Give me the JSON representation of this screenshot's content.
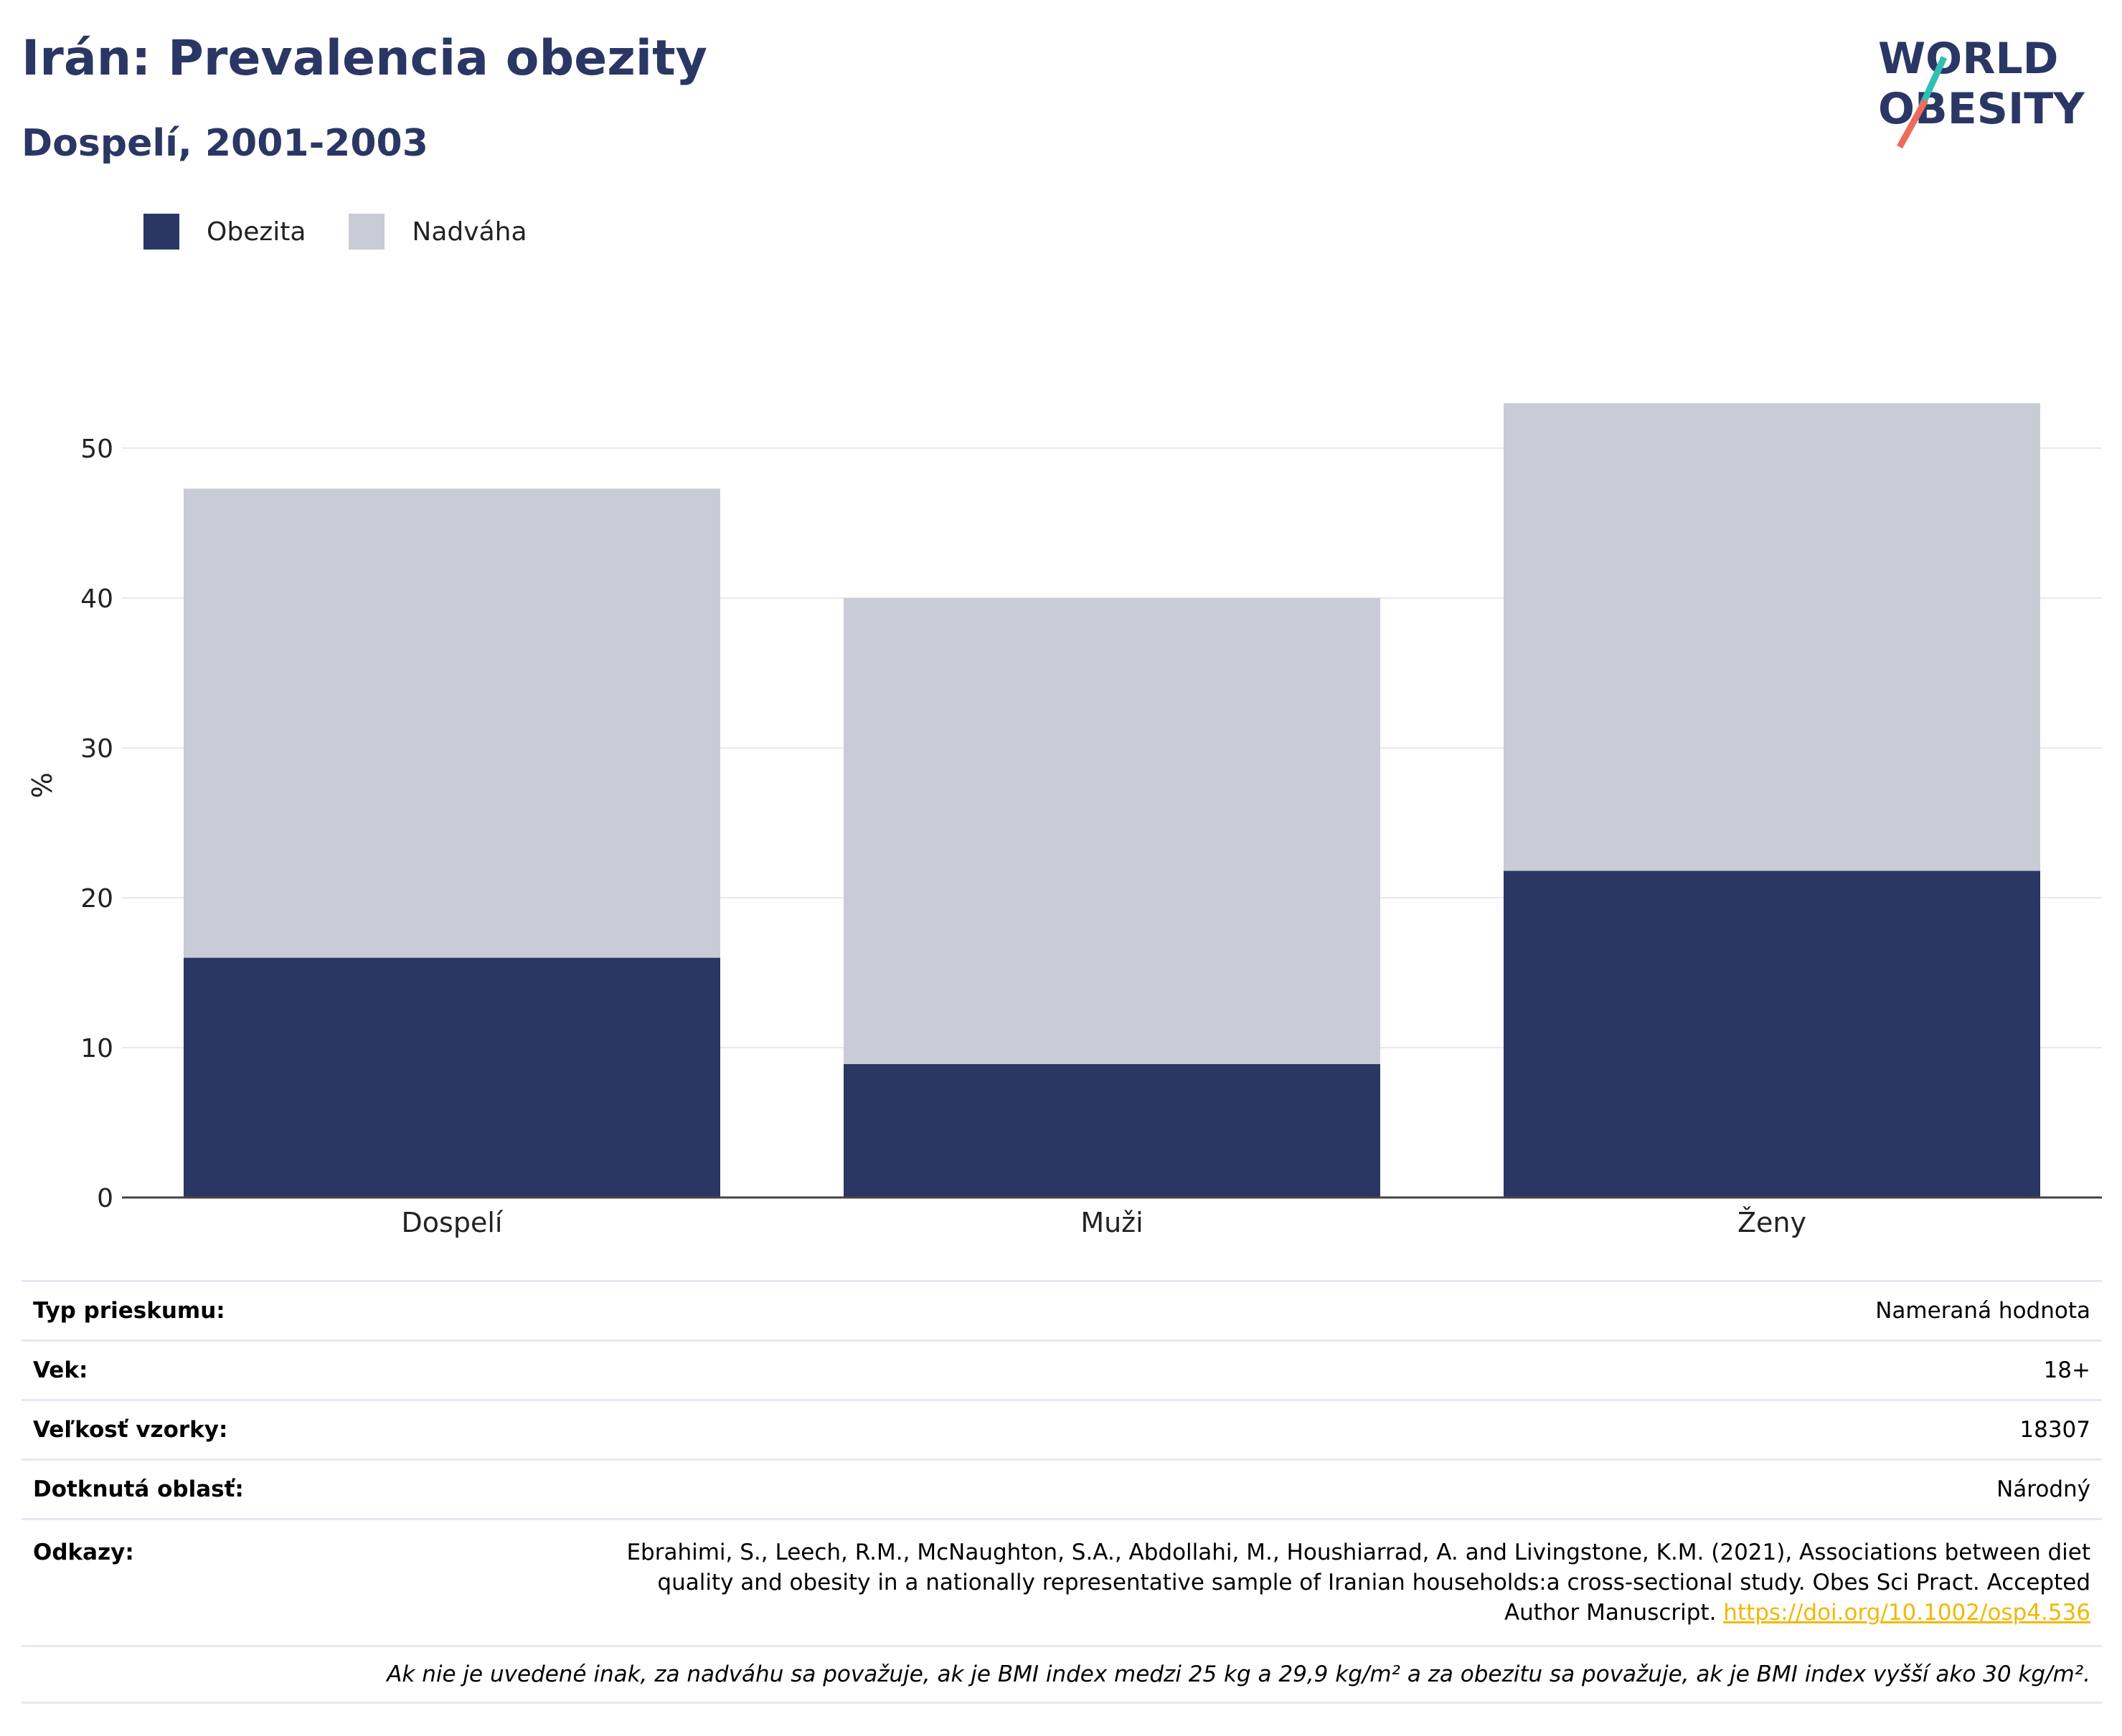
{
  "header": {
    "title": "Irán: Prevalencia obezity",
    "subtitle": "Dospelí, 2001-2003",
    "logo_line1": "WORLD",
    "logo_line2": "OBESITY"
  },
  "colors": {
    "obesity": "#2a3765",
    "overweight": "#c9cbd6",
    "title": "#2a3765",
    "logo_teal": "#2fbfb3",
    "logo_coral": "#ef6b5b"
  },
  "chart_data": {
    "type": "bar",
    "stacked": true,
    "categories": [
      "Dospelí",
      "Muži",
      "Ženy"
    ],
    "series": [
      {
        "name": "Obezita",
        "values": [
          16.0,
          8.9,
          21.8
        ]
      },
      {
        "name": "Nadváha",
        "values": [
          31.3,
          31.1,
          31.2
        ]
      }
    ],
    "ylabel": "%",
    "ylim": [
      0,
      55
    ],
    "yticks": [
      0,
      10,
      20,
      30,
      40,
      50
    ],
    "grid": true,
    "legend": "top-left"
  },
  "info": {
    "survey_type_label": "Typ prieskumu:",
    "survey_type_value": "Nameraná hodnota",
    "age_label": "Vek:",
    "age_value": "18+",
    "sample_label": "Veľkosť vzorky:",
    "sample_value": "18307",
    "area_label": "Dotknutá oblasť:",
    "area_value": "Národný",
    "refs_label": "Odkazy:",
    "refs_text": "Ebrahimi, S., Leech, R.M., McNaughton, S.A., Abdollahi, M., Houshiarrad, A. and Livingstone, K.M. (2021), Associations between diet quality and obesity in a nationally representative sample of Iranian households:a cross-sectional study. Obes Sci Pract. Accepted Author Manuscript. ",
    "refs_doi": "https://doi.org/10.1002/osp4.536",
    "note": "Ak nie je uvedené inak, za nadváhu sa považuje, ak je BMI index medzi 25 kg a 29,9 kg/m² a za obezitu sa považuje, ak je BMI index vyšší ako 30 kg/m²."
  }
}
